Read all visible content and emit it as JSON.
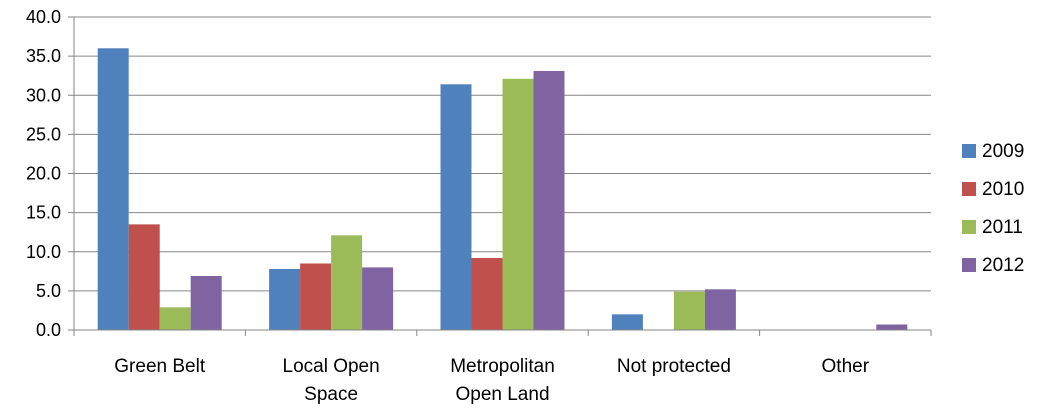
{
  "chart_data": {
    "type": "bar",
    "title": "",
    "xlabel": "",
    "ylabel": "",
    "categories": [
      [
        "Green Belt"
      ],
      [
        "Local Open",
        "Space"
      ],
      [
        "Metropolitan",
        "Open Land"
      ],
      [
        "Not protected"
      ],
      [
        "Other"
      ]
    ],
    "series": [
      {
        "name": "2009",
        "color": "#4F81BD",
        "values": [
          36.0,
          7.8,
          31.4,
          2.0,
          0
        ]
      },
      {
        "name": "2010",
        "color": "#C0504D",
        "values": [
          13.5,
          8.5,
          9.2,
          0,
          0
        ]
      },
      {
        "name": "2011",
        "color": "#9BBB59",
        "values": [
          2.9,
          12.1,
          32.1,
          4.9,
          0
        ]
      },
      {
        "name": "2012",
        "color": "#8064A2",
        "values": [
          6.9,
          8.0,
          33.1,
          5.2,
          0.7
        ]
      }
    ],
    "ylim": [
      0,
      40
    ],
    "yticks": [
      "0.0",
      "5.0",
      "10.0",
      "15.0",
      "20.0",
      "25.0",
      "30.0",
      "35.0",
      "40.0"
    ],
    "grid": true,
    "legend_position": "right"
  }
}
